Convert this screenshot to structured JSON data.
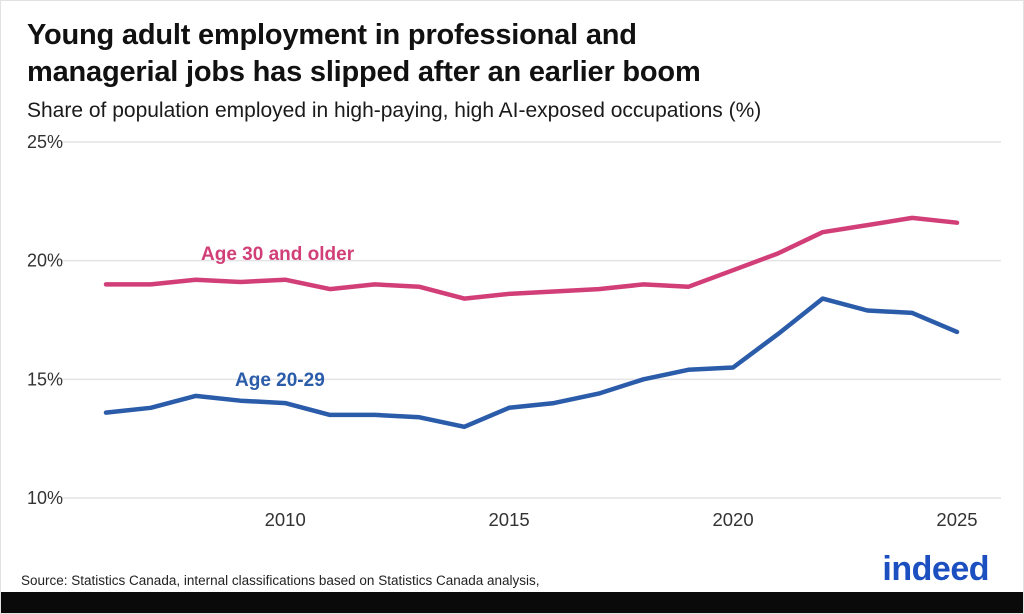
{
  "header": {
    "title": "Young adult employment in professional and\nmanagerial jobs has slipped after an earlier boom",
    "subtitle": "Share of population employed in high-paying, high AI-exposed occupations (%)"
  },
  "chart_data": {
    "type": "line",
    "title": "Young adult employment in professional and managerial jobs has slipped after an earlier boom",
    "subtitle": "Share of population employed in high-paying, high AI-exposed occupations (%)",
    "x": [
      2006,
      2007,
      2008,
      2009,
      2010,
      2011,
      2012,
      2013,
      2014,
      2015,
      2016,
      2017,
      2018,
      2019,
      2020,
      2021,
      2022,
      2023,
      2024,
      2025
    ],
    "xticks": [
      2010,
      2015,
      2020,
      2025
    ],
    "yticks": [
      10,
      15,
      20,
      25
    ],
    "ylim": [
      10,
      25
    ],
    "ytick_suffix": "%",
    "grid": "horizontal",
    "legend": "inline-labels",
    "series": [
      {
        "name": "Age 30 and older",
        "color": "#d23f78",
        "values": [
          19.0,
          19.0,
          19.2,
          19.1,
          19.2,
          18.8,
          19.0,
          18.9,
          18.4,
          18.6,
          18.7,
          18.8,
          19.0,
          18.9,
          19.6,
          20.3,
          21.2,
          21.5,
          21.8,
          21.6
        ]
      },
      {
        "name": "Age 20-29",
        "color": "#2b5caa",
        "values": [
          13.6,
          13.8,
          14.3,
          14.1,
          14.0,
          13.5,
          13.5,
          13.4,
          13.0,
          13.8,
          14.0,
          14.4,
          15.0,
          15.4,
          15.5,
          16.9,
          18.4,
          17.9,
          17.8,
          17.0
        ]
      }
    ]
  },
  "footer": {
    "source": "Source: Statistics Canada, internal classifications based on Statistics Canada analysis,",
    "logo_text": "indeed"
  },
  "colors": {
    "pink": "#d23f78",
    "blue": "#2b5caa",
    "logo_blue": "#1c4fc0",
    "grid": "#e4e4e6",
    "tick_text": "#333333"
  }
}
